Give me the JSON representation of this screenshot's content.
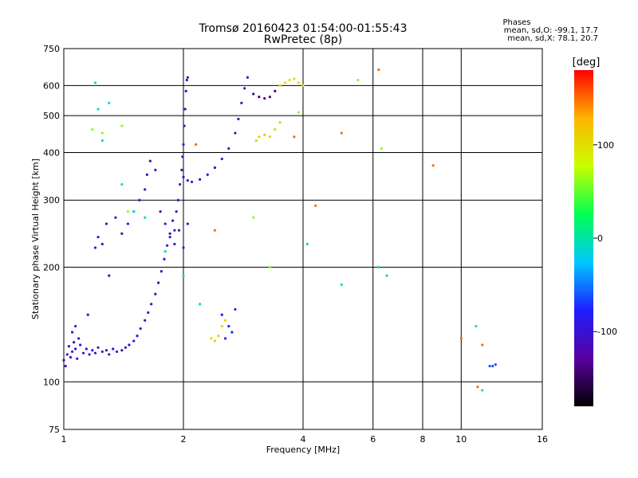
{
  "chart_data": {
    "type": "scatter",
    "title": "Tromsø 20160423 01:54:00-01:55:43",
    "subtitle": "RwPretec (8p)",
    "xlabel": "Frequency [MHz]",
    "ylabel": "Stationary phase Virtual Height [km]",
    "x_scale": "log",
    "y_scale": "log",
    "xlim": [
      1,
      16
    ],
    "ylim": [
      75,
      750
    ],
    "x_ticks": [
      1,
      2,
      4,
      6,
      8,
      10,
      16
    ],
    "y_ticks": [
      75,
      100,
      200,
      300,
      400,
      500,
      600,
      750
    ],
    "grid": true,
    "phase_stats": {
      "title": "Phases",
      "o_line": "mean, sd,O: -99.1, 17.7",
      "x_line": "mean, sd,X:  78.1, 20.7"
    },
    "colorbar": {
      "label": "[deg]",
      "range": [
        -180,
        180
      ],
      "ticks": [
        100,
        0,
        -100
      ],
      "colors": [
        "#000000",
        "#5a00a0",
        "#1e1eff",
        "#00c8ff",
        "#00ff50",
        "#c8ff00",
        "#ffb400",
        "#ff0000"
      ]
    },
    "series": [
      {
        "phase": -105,
        "points": [
          [
            1.0,
            114
          ],
          [
            1.01,
            110
          ],
          [
            1.02,
            118
          ],
          [
            1.03,
            124
          ],
          [
            1.04,
            116
          ],
          [
            1.05,
            120
          ],
          [
            1.06,
            127
          ],
          [
            1.07,
            122
          ],
          [
            1.08,
            115
          ],
          [
            1.09,
            130
          ],
          [
            1.1,
            125
          ],
          [
            1.12,
            119
          ],
          [
            1.14,
            122
          ],
          [
            1.16,
            118
          ],
          [
            1.18,
            121
          ],
          [
            1.2,
            119
          ],
          [
            1.22,
            123
          ],
          [
            1.25,
            120
          ],
          [
            1.28,
            121
          ],
          [
            1.3,
            118
          ],
          [
            1.33,
            122
          ],
          [
            1.36,
            120
          ],
          [
            1.4,
            121
          ],
          [
            1.43,
            123
          ],
          [
            1.46,
            125
          ],
          [
            1.5,
            128
          ],
          [
            1.53,
            132
          ],
          [
            1.56,
            138
          ],
          [
            1.6,
            145
          ],
          [
            1.63,
            152
          ],
          [
            1.66,
            160
          ],
          [
            1.7,
            170
          ],
          [
            1.73,
            182
          ],
          [
            1.76,
            195
          ],
          [
            1.79,
            210
          ],
          [
            1.82,
            228
          ],
          [
            1.85,
            245
          ],
          [
            1.88,
            265
          ],
          [
            1.9,
            250
          ],
          [
            1.92,
            280
          ],
          [
            1.94,
            300
          ],
          [
            1.96,
            330
          ],
          [
            1.98,
            360
          ],
          [
            1.99,
            390
          ],
          [
            2.0,
            420
          ],
          [
            2.01,
            470
          ],
          [
            2.02,
            520
          ],
          [
            2.03,
            580
          ],
          [
            2.04,
            620
          ],
          [
            2.05,
            630
          ]
        ]
      },
      {
        "phase": -110,
        "points": [
          [
            1.05,
            135
          ],
          [
            1.07,
            140
          ],
          [
            1.15,
            150
          ],
          [
            1.2,
            225
          ],
          [
            1.22,
            240
          ],
          [
            1.25,
            230
          ],
          [
            1.28,
            260
          ],
          [
            1.3,
            190
          ],
          [
            1.35,
            270
          ],
          [
            1.4,
            245
          ],
          [
            1.45,
            260
          ],
          [
            1.5,
            280
          ],
          [
            1.55,
            300
          ],
          [
            1.6,
            320
          ],
          [
            1.62,
            350
          ],
          [
            1.65,
            380
          ],
          [
            1.7,
            360
          ],
          [
            1.75,
            280
          ],
          [
            1.8,
            260
          ],
          [
            1.85,
            240
          ],
          [
            1.9,
            230
          ],
          [
            1.95,
            250
          ],
          [
            2.0,
            225
          ],
          [
            2.05,
            260
          ]
        ]
      },
      {
        "phase": -110,
        "points": [
          [
            2.0,
            345
          ],
          [
            2.05,
            338
          ],
          [
            2.1,
            335
          ],
          [
            2.2,
            340
          ],
          [
            2.3,
            350
          ],
          [
            2.4,
            365
          ],
          [
            2.5,
            385
          ],
          [
            2.6,
            410
          ],
          [
            2.7,
            450
          ],
          [
            2.75,
            490
          ],
          [
            2.8,
            540
          ],
          [
            2.85,
            590
          ],
          [
            2.9,
            630
          ]
        ]
      },
      {
        "phase": -80,
        "points": [
          [
            2.5,
            150
          ],
          [
            2.55,
            130
          ],
          [
            2.6,
            140
          ],
          [
            2.65,
            135
          ],
          [
            2.7,
            155
          ]
        ]
      },
      {
        "phase": 110,
        "points": [
          [
            3.05,
            430
          ],
          [
            3.1,
            440
          ],
          [
            3.2,
            445
          ],
          [
            3.3,
            440
          ],
          [
            3.4,
            460
          ],
          [
            3.5,
            480
          ]
        ]
      },
      {
        "phase": -135,
        "points": [
          [
            3.0,
            570
          ],
          [
            3.1,
            560
          ],
          [
            3.2,
            555
          ],
          [
            3.3,
            560
          ],
          [
            3.4,
            580
          ]
        ]
      },
      {
        "phase": 100,
        "points": [
          [
            3.5,
            600
          ],
          [
            3.6,
            610
          ],
          [
            3.7,
            620
          ],
          [
            3.8,
            625
          ],
          [
            3.9,
            610
          ],
          [
            4.0,
            600
          ]
        ]
      },
      {
        "phase": 110,
        "points": [
          [
            2.35,
            130
          ],
          [
            2.4,
            128
          ],
          [
            2.45,
            132
          ],
          [
            2.5,
            140
          ],
          [
            2.55,
            145
          ]
        ]
      },
      {
        "phase": -60,
        "points": [
          [
            11.8,
            110
          ],
          [
            12.0,
            110
          ],
          [
            12.2,
            111
          ]
        ]
      },
      {
        "phase": -10,
        "points": [
          [
            1.2,
            610
          ],
          [
            1.22,
            520
          ],
          [
            1.25,
            430
          ],
          [
            1.3,
            540
          ],
          [
            1.4,
            330
          ],
          [
            1.5,
            280
          ],
          [
            1.6,
            270
          ],
          [
            1.8,
            220
          ],
          [
            2.0,
            190
          ],
          [
            2.2,
            160
          ],
          [
            4.1,
            230
          ],
          [
            5.0,
            180
          ],
          [
            6.2,
            200
          ],
          [
            6.5,
            190
          ],
          [
            10.9,
            140
          ],
          [
            11.3,
            95
          ]
        ]
      },
      {
        "phase": 60,
        "points": [
          [
            1.18,
            460
          ],
          [
            1.25,
            450
          ],
          [
            1.4,
            470
          ],
          [
            1.45,
            280
          ],
          [
            3.0,
            270
          ],
          [
            3.3,
            200
          ],
          [
            3.9,
            510
          ],
          [
            5.5,
            620
          ],
          [
            6.3,
            410
          ]
        ]
      },
      {
        "phase": 150,
        "points": [
          [
            2.15,
            420
          ],
          [
            2.4,
            250
          ],
          [
            3.8,
            440
          ],
          [
            4.3,
            290
          ],
          [
            5.0,
            450
          ],
          [
            6.2,
            660
          ],
          [
            8.5,
            370
          ],
          [
            11.3,
            125
          ],
          [
            11.0,
            97
          ],
          [
            10.0,
            130
          ]
        ]
      }
    ]
  }
}
